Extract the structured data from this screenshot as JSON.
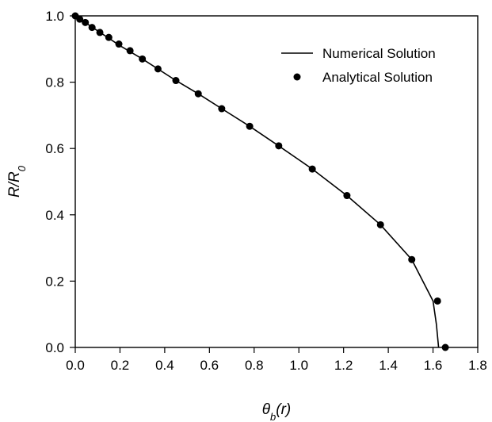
{
  "chart_data": {
    "type": "line",
    "title": "",
    "xlabel": "θb(r)",
    "ylabel": "R/R0",
    "xlim": [
      0,
      1.8
    ],
    "ylim": [
      0,
      1.0
    ],
    "x_ticks": [
      0.0,
      0.2,
      0.4,
      0.6,
      0.8,
      1.0,
      1.2,
      1.4,
      1.6,
      1.8
    ],
    "x_tick_labels": [
      "0.0",
      "0.2",
      "0.4",
      "0.6",
      "0.8",
      "1.0",
      "1.2",
      "1.4",
      "1.6",
      "1.8"
    ],
    "y_ticks": [
      0.0,
      0.2,
      0.4,
      0.6,
      0.8,
      1.0
    ],
    "y_tick_labels": [
      "0.0",
      "0.2",
      "0.4",
      "0.6",
      "0.8",
      "1.0"
    ],
    "grid": false,
    "legend_position": "top-right",
    "series": [
      {
        "name": "Numerical Solution",
        "style": "line",
        "color": "#000000",
        "x": [
          0.0,
          0.1,
          0.2,
          0.3,
          0.45,
          0.55,
          0.655,
          0.78,
          0.91,
          1.06,
          1.215,
          1.365,
          1.505,
          1.6,
          1.615,
          1.625
        ],
        "y": [
          1.0,
          0.955,
          0.91,
          0.87,
          0.805,
          0.765,
          0.72,
          0.667,
          0.608,
          0.538,
          0.458,
          0.37,
          0.265,
          0.14,
          0.07,
          0.0
        ]
      },
      {
        "name": "Analytical Solution",
        "style": "markers",
        "color": "#000000",
        "x": [
          0.0,
          0.02,
          0.045,
          0.075,
          0.11,
          0.15,
          0.195,
          0.245,
          0.3,
          0.37,
          0.45,
          0.55,
          0.655,
          0.78,
          0.91,
          1.06,
          1.215,
          1.365,
          1.505,
          1.62,
          1.655
        ],
        "y": [
          1.0,
          0.99,
          0.98,
          0.965,
          0.95,
          0.935,
          0.915,
          0.895,
          0.87,
          0.84,
          0.805,
          0.765,
          0.72,
          0.667,
          0.608,
          0.538,
          0.458,
          0.37,
          0.265,
          0.14,
          0.0
        ]
      }
    ]
  }
}
